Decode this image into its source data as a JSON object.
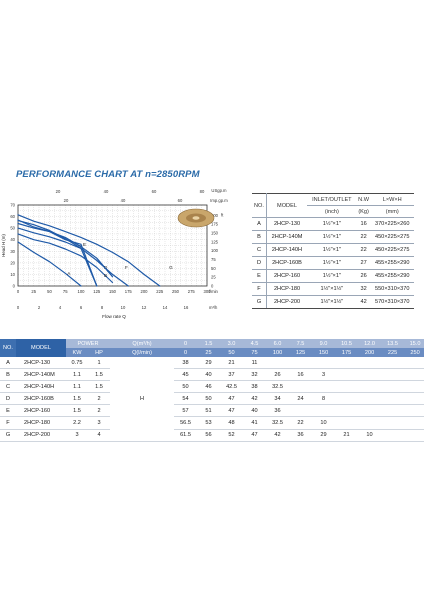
{
  "title": "PERFORMANCE CHART AT n=2850RPM",
  "chart_data": {
    "type": "line",
    "xlabel": "Flow rate Q",
    "ylabel": "Head H (m)",
    "xlim": [
      0,
      18
    ],
    "ylim": [
      0,
      70
    ],
    "x_ticks": [
      "0",
      "2",
      "4",
      "6",
      "8",
      "10",
      "12",
      "14",
      "16"
    ],
    "x_unit": "m³/h",
    "y_ticks": [
      "0",
      "10",
      "20",
      "30",
      "40",
      "50",
      "60",
      "70"
    ],
    "top_ticks": [
      "20",
      "40",
      "60",
      "80"
    ],
    "top_unit": "USgp.m",
    "lmin_ticks": [
      "0",
      "25",
      "50",
      "75",
      "100",
      "125",
      "150",
      "175",
      "200",
      "225",
      "250",
      "275",
      "300"
    ],
    "lmin_unit": "l/min",
    "impgpm_ticks": [
      "20",
      "40",
      "60"
    ],
    "impgpm_unit": "Imp.gp.m",
    "ft_ticks": [
      "0",
      "25",
      "50",
      "75",
      "100",
      "125",
      "150",
      "175",
      "200"
    ],
    "ft_unit": "ft",
    "grid": true,
    "series": [
      {
        "name": "A",
        "x": [
          0,
          1.5,
          3,
          4.5,
          6
        ],
        "y": [
          38,
          29,
          21,
          11,
          0
        ]
      },
      {
        "name": "B",
        "x": [
          0,
          1.5,
          3,
          4.5,
          6,
          7.5,
          9
        ],
        "y": [
          45,
          40,
          37,
          32,
          26,
          16,
          3
        ]
      },
      {
        "name": "C",
        "x": [
          0,
          1.5,
          3,
          4.5,
          6,
          7.5
        ],
        "y": [
          50,
          46,
          42.5,
          38,
          32.5,
          0
        ]
      },
      {
        "name": "D",
        "x": [
          0,
          1.5,
          3,
          4.5,
          6,
          7.5,
          9
        ],
        "y": [
          54,
          50,
          47,
          42,
          34,
          24,
          8
        ]
      },
      {
        "name": "E",
        "x": [
          0,
          1.5,
          3,
          4.5,
          6,
          7.5
        ],
        "y": [
          57,
          51,
          47,
          40,
          36,
          0
        ]
      },
      {
        "name": "F",
        "x": [
          0,
          1.5,
          3,
          4.5,
          6,
          7.5,
          9,
          10.5
        ],
        "y": [
          56.5,
          53,
          48,
          41,
          32.5,
          22,
          10,
          0
        ]
      },
      {
        "name": "G",
        "x": [
          0,
          1.5,
          3,
          4.5,
          6,
          7.5,
          9,
          10.5,
          12,
          13.5,
          15
        ],
        "y": [
          61.5,
          56,
          52,
          47,
          42,
          36,
          29,
          21,
          10,
          0,
          0
        ]
      }
    ]
  },
  "spec_table": {
    "headers": [
      "NO.",
      "MODEL",
      "INLET/OUTLET",
      "N.W",
      "L×W×H"
    ],
    "units": [
      "(inch)",
      "(Kg)",
      "(mm)"
    ],
    "rows": [
      [
        "A",
        "2HCP-130",
        "1½\"×1\"",
        "16",
        "370×225×260"
      ],
      [
        "B",
        "2HCP-140M",
        "1½\"×1\"",
        "22",
        "450×225×275"
      ],
      [
        "C",
        "2HCP-140H",
        "1½\"×1\"",
        "22",
        "450×225×275"
      ],
      [
        "D",
        "2HCP-160B",
        "1½\"×1\"",
        "27",
        "455×255×290"
      ],
      [
        "E",
        "2HCP-160",
        "1½\"×1\"",
        "26",
        "455×255×290"
      ],
      [
        "F",
        "2HCP-180",
        "1½\"×1½\"",
        "32",
        "550×310×370"
      ],
      [
        "G",
        "2HCP-200",
        "1½\"×1½\"",
        "42",
        "570×310×370"
      ]
    ]
  },
  "perf_table": {
    "head_top": [
      "NO.",
      "MODEL",
      "POWER",
      "Q(m³/h)",
      "0",
      "1.5",
      "3.0",
      "4.5",
      "6.0",
      "7.5",
      "9.0",
      "10.5",
      "12.0",
      "13.5",
      "15.0"
    ],
    "head_bottom": [
      "KW",
      "HP",
      "Q(l/min)",
      "0",
      "25",
      "50",
      "75",
      "100",
      "125",
      "150",
      "175",
      "200",
      "225",
      "250"
    ],
    "h_label": "H",
    "rows": [
      {
        "no": "A",
        "model": "2HCP-130",
        "kw": "0.75",
        "hp": "1",
        "vals": [
          "38",
          "29",
          "21",
          "11",
          "",
          "",
          "",
          "",
          "",
          "",
          ""
        ]
      },
      {
        "no": "B",
        "model": "2HCP-140M",
        "kw": "1.1",
        "hp": "1.5",
        "vals": [
          "45",
          "40",
          "37",
          "32",
          "26",
          "16",
          "3",
          "",
          "",
          "",
          ""
        ]
      },
      {
        "no": "C",
        "model": "2HCP-140H",
        "kw": "1.1",
        "hp": "1.5",
        "vals": [
          "50",
          "46",
          "42.5",
          "38",
          "32.5",
          "",
          "",
          "",
          "",
          "",
          ""
        ]
      },
      {
        "no": "D",
        "model": "2HCP-160B",
        "kw": "1.5",
        "hp": "2",
        "vals": [
          "54",
          "50",
          "47",
          "42",
          "34",
          "24",
          "8",
          "",
          "",
          "",
          ""
        ]
      },
      {
        "no": "E",
        "model": "2HCP-160",
        "kw": "1.5",
        "hp": "2",
        "vals": [
          "57",
          "51",
          "47",
          "40",
          "36",
          "",
          "",
          "",
          "",
          "",
          ""
        ]
      },
      {
        "no": "F",
        "model": "2HCP-180",
        "kw": "2.2",
        "hp": "3",
        "vals": [
          "56.5",
          "53",
          "48",
          "41",
          "32.5",
          "22",
          "10",
          "",
          "",
          "",
          ""
        ]
      },
      {
        "no": "G",
        "model": "2HCP-200",
        "kw": "3",
        "hp": "4",
        "vals": [
          "61.5",
          "56",
          "52",
          "47",
          "42",
          "36",
          "29",
          "21",
          "10",
          "",
          ""
        ]
      }
    ]
  },
  "colors": {
    "curve": "#1f5aa8",
    "accent": "#2a6aa8",
    "header_light": "#a7b9d8",
    "header_dark": "#6a8cc2"
  }
}
